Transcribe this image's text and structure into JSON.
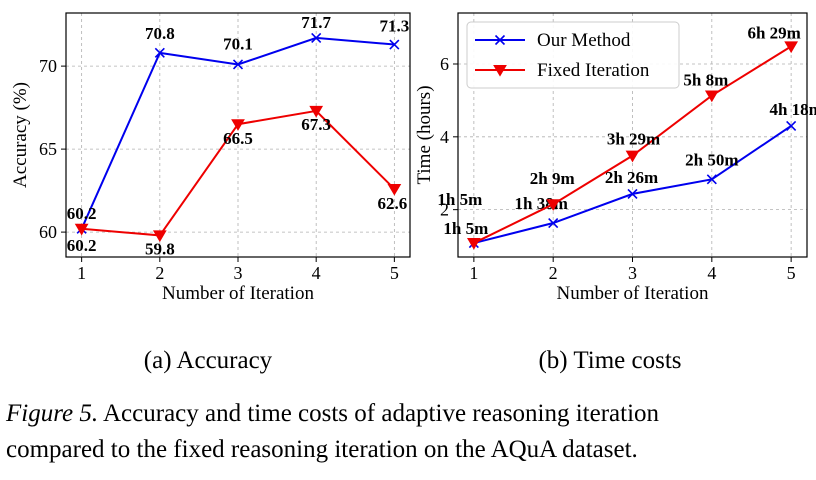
{
  "chart_data": [
    {
      "type": "line",
      "subcaption": "(a)  Accuracy",
      "xlabel": "Number of Iteration",
      "ylabel": "Accuracy (%)",
      "x": [
        1,
        2,
        3,
        4,
        5
      ],
      "xlim": [
        0.8,
        5.2
      ],
      "ylim": [
        58.5,
        73.2
      ],
      "yticks": [
        60,
        65,
        70
      ],
      "grid": true,
      "legend": "none",
      "series": [
        {
          "name": "Our Method",
          "color": "#0000ee",
          "marker": "x",
          "values": [
            60.2,
            70.8,
            70.1,
            71.7,
            71.3
          ],
          "labels": [
            "60.2",
            "70.8",
            "70.1",
            "71.7",
            "71.3"
          ]
        },
        {
          "name": "Fixed Iteration",
          "color": "#ee0000",
          "marker": "triangle-down",
          "values": [
            60.2,
            59.8,
            66.5,
            67.3,
            62.6
          ],
          "labels": [
            "60.2",
            "59.8",
            "66.5",
            "67.3",
            "62.6"
          ]
        }
      ]
    },
    {
      "type": "line",
      "subcaption": "(b)  Time costs",
      "xlabel": "Number of Iteration",
      "ylabel": "Time (hours)",
      "x": [
        1,
        2,
        3,
        4,
        5
      ],
      "xlim": [
        0.8,
        5.2
      ],
      "ylim": [
        0.7,
        7.4
      ],
      "yticks": [
        2,
        4,
        6
      ],
      "grid": true,
      "legend": "top-left",
      "series": [
        {
          "name": "Our Method",
          "color": "#0000ee",
          "marker": "x",
          "values": [
            1.083,
            1.633,
            2.433,
            2.833,
            4.3
          ],
          "labels": [
            "1h 5m",
            "1h 38m",
            "2h 26m",
            "2h 50m",
            "4h 18m"
          ]
        },
        {
          "name": "Fixed Iteration",
          "color": "#ee0000",
          "marker": "triangle-down",
          "values": [
            1.083,
            2.15,
            3.483,
            5.133,
            6.483
          ],
          "labels": [
            "1h 5m",
            "2h 9m",
            "3h 29m",
            "5h 8m",
            "6h 29m"
          ]
        }
      ]
    }
  ],
  "caption": {
    "label": "Figure 5.",
    "line1": " Accuracy and time costs of adaptive reasoning iteration",
    "line2": "compared to the fixed reasoning iteration on the AQuA dataset."
  }
}
